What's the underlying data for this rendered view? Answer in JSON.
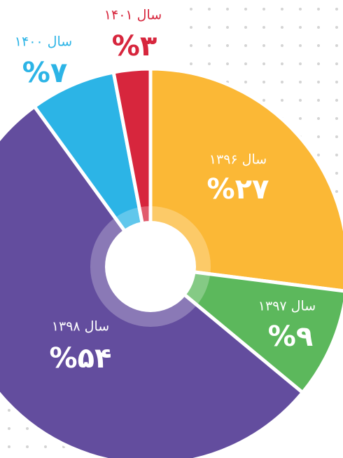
{
  "chart_data": {
    "type": "pie",
    "categories": [
      "سال ۱۳۹۶",
      "سال ۱۳۹۷",
      "سال ۱۳۹۸",
      "سال ۱۴۰۰",
      "سال ۱۴۰۱"
    ],
    "values": [
      27,
      9,
      54,
      7,
      3
    ],
    "value_labels": [
      "%۲۷",
      "%۹",
      "%۵۴",
      "%۷",
      "%۳"
    ],
    "colors": [
      "#fbb836",
      "#5cb85c",
      "#634d9e",
      "#2cb4e6",
      "#d7263d"
    ]
  }
}
